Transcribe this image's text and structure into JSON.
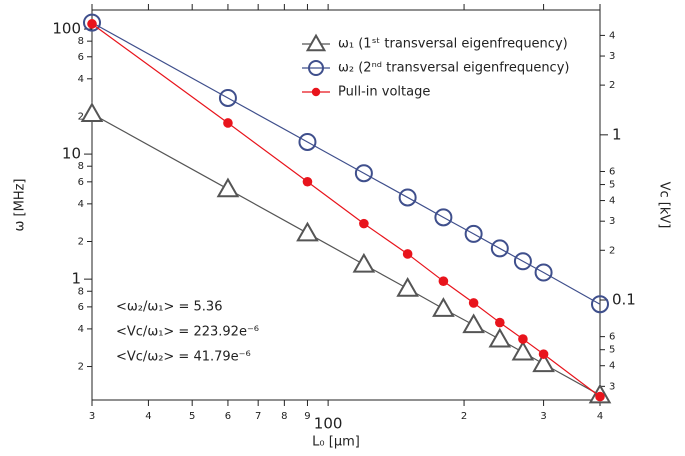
{
  "chart_data": {
    "type": "line",
    "xlabel": "L₀ [μm]",
    "ylabel": "ω [MHz]",
    "y2label": "Vc [kV]",
    "xscale": "log",
    "yscale": "log",
    "y2scale": "log",
    "legend": "upper right",
    "xlim": [
      30,
      400
    ],
    "ylim": [
      0.108,
      142
    ],
    "y2lim": [
      0.0248,
      5.7
    ],
    "xticks": [
      {
        "value": 30,
        "label": "3"
      },
      {
        "value": 40,
        "label": "4"
      },
      {
        "value": 50,
        "label": "5"
      },
      {
        "value": 60,
        "label": "6"
      },
      {
        "value": 70,
        "label": "7"
      },
      {
        "value": 80,
        "label": "8"
      },
      {
        "value": 90,
        "label": "9"
      },
      100,
      {
        "value": 200,
        "label": "2"
      },
      {
        "value": 300,
        "label": "3"
      },
      {
        "value": 400,
        "label": "4"
      }
    ],
    "yticks": [
      {
        "value": 0.2,
        "label": "2"
      },
      {
        "value": 0.4,
        "label": "4"
      },
      {
        "value": 0.6,
        "label": "6"
      },
      {
        "value": 0.8,
        "label": "8"
      },
      1,
      {
        "value": 2,
        "label": "2"
      },
      {
        "value": 4,
        "label": "4"
      },
      {
        "value": 6,
        "label": "6"
      },
      {
        "value": 8,
        "label": "8"
      },
      10,
      {
        "value": 20,
        "label": "2"
      },
      {
        "value": 40,
        "label": "4"
      },
      {
        "value": 60,
        "label": "6"
      },
      {
        "value": 80,
        "label": "8"
      },
      100
    ],
    "y2ticks": [
      {
        "value": 0.03,
        "label": "3"
      },
      {
        "value": 0.04,
        "label": "4"
      },
      {
        "value": 0.05,
        "label": "5"
      },
      {
        "value": 0.06,
        "label": "6"
      },
      0.1,
      {
        "value": 0.2,
        "label": "2"
      },
      {
        "value": 0.3,
        "label": "3"
      },
      {
        "value": 0.4,
        "label": "4"
      },
      {
        "value": 0.5,
        "label": "5"
      },
      {
        "value": 0.6,
        "label": "6"
      },
      1,
      {
        "value": 2,
        "label": "2"
      },
      {
        "value": 3,
        "label": "3"
      },
      {
        "value": 4,
        "label": "4"
      }
    ],
    "x": [
      30,
      60,
      90,
      120,
      150,
      180,
      210,
      240,
      270,
      300,
      400
    ],
    "series": [
      {
        "name": "ω₁ (1ˢᵗ transversal eigenfrequency)",
        "color": "#555555",
        "marker": "triangle",
        "values": [
          21,
          5.25,
          2.33,
          1.31,
          0.84,
          0.58,
          0.43,
          0.33,
          0.26,
          0.21,
          0.118
        ]
      },
      {
        "name": "ω₂ (2ⁿᵈ transversal eigenfrequency)",
        "color": "#3f4f8c",
        "marker": "circle",
        "values": [
          112.6,
          28.1,
          12.5,
          7.03,
          4.5,
          3.12,
          2.3,
          1.76,
          1.39,
          1.13,
          0.63
        ]
      },
      {
        "name": "Pull-in voltage",
        "color": "#e8141c",
        "marker": "dot",
        "axis": "y2",
        "values": [
          4.7,
          1.18,
          0.52,
          0.29,
          0.19,
          0.13,
          0.096,
          0.073,
          0.058,
          0.047,
          0.026
        ]
      }
    ],
    "annotations": [
      "<ω₂/ω₁> = 5.36",
      "<Vc/ω₁> = 223.92e⁻⁶",
      "<Vc/ω₂> = 41.79e⁻⁶"
    ]
  }
}
